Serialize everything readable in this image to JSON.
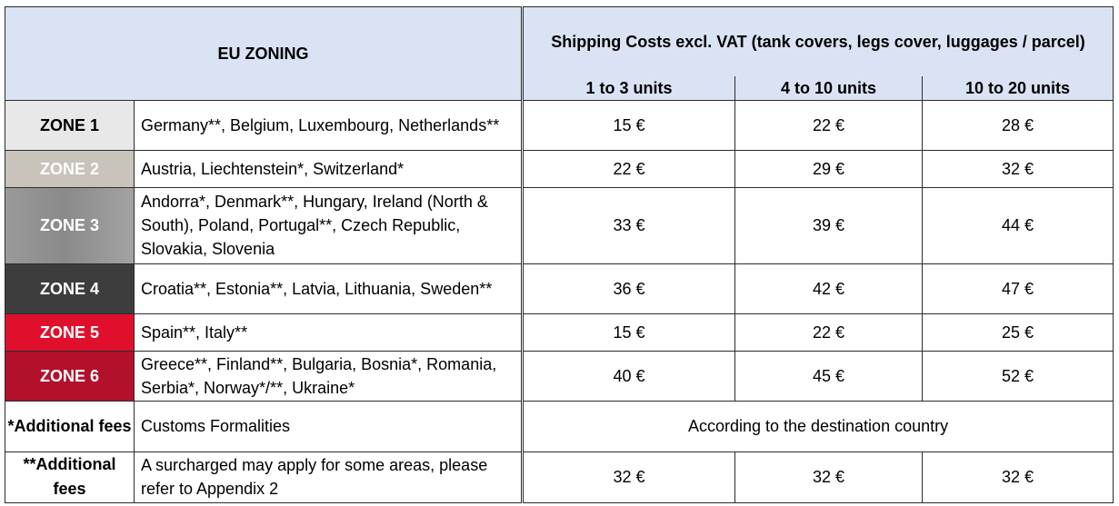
{
  "header": {
    "eu_zoning": "EU ZONING",
    "shipping_title": "Shipping Costs excl. VAT (tank covers, legs cover, luggages / parcel)",
    "units": [
      "1 to 3 units",
      "4 to 10 units",
      "10 to 20 units"
    ]
  },
  "zones": [
    {
      "label": "ZONE 1",
      "countries": "Germany**, Belgium, Luxembourg, Netherlands**",
      "prices": [
        "15 €",
        "22 €",
        "28 €"
      ],
      "color": "#e8e8e8"
    },
    {
      "label": "ZONE 2",
      "countries": "Austria, Liechtenstein*, Switzerland*",
      "prices": [
        "22 €",
        "29 €",
        "32 €"
      ],
      "color": "#c8c3bb"
    },
    {
      "label": "ZONE 3",
      "countries": "Andorra*, Denmark**, Hungary, Ireland (North & South), Poland, Portugal**, Czech Republic, Slovakia, Slovenia",
      "prices": [
        "33 €",
        "39 €",
        "44 €"
      ],
      "color": "#939393"
    },
    {
      "label": "ZONE 4",
      "countries": "Croatia**, Estonia**, Latvia, Lithuania, Sweden**",
      "prices": [
        "36 €",
        "42 €",
        "47 €"
      ],
      "color": "#3d3d3d"
    },
    {
      "label": "ZONE 5",
      "countries": "Spain**, Italy**",
      "prices": [
        "15 €",
        "22 €",
        "25 €"
      ],
      "color": "#e0102c"
    },
    {
      "label": "ZONE 6",
      "countries": "Greece**, Finland**, Bulgaria, Bosnia*, Romania, Serbia*, Norway*/**, Ukraine*",
      "prices": [
        "40 €",
        "45 €",
        "52 €"
      ],
      "color": "#b3102b"
    }
  ],
  "fees": [
    {
      "label": "*Additional fees",
      "description": "Customs Formalities",
      "note": "According to the destination country"
    },
    {
      "label": "**Additional fees",
      "description": "A surcharged may apply for some areas, please refer to Appendix 2",
      "prices": [
        "32 €",
        "32 €",
        "32 €"
      ]
    }
  ]
}
